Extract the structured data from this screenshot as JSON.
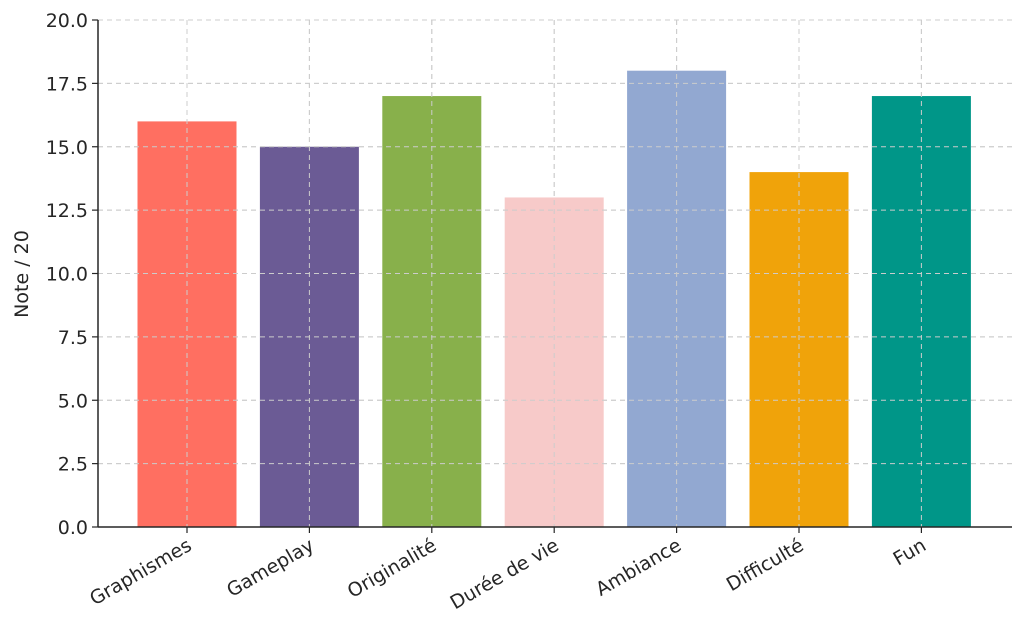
{
  "chart_data": {
    "type": "bar",
    "title": "",
    "xlabel": "",
    "ylabel": "Note / 20",
    "categories": [
      "Graphismes",
      "Gameplay",
      "Originalité",
      "Durée de vie",
      "Ambiance",
      "Difficulté",
      "Fun"
    ],
    "values": [
      16,
      15,
      17,
      13,
      18,
      14,
      17
    ],
    "colors": [
      "#ff6f61",
      "#6b5b95",
      "#88b04b",
      "#f7cac9",
      "#92a8d1",
      "#f0a30a",
      "#009688"
    ],
    "ylim": [
      0,
      20
    ],
    "yticks": [
      0.0,
      2.5,
      5.0,
      7.5,
      10.0,
      12.5,
      15.0,
      17.5,
      20.0
    ],
    "ytick_labels": [
      "0.0",
      "2.5",
      "5.0",
      "7.5",
      "10.0",
      "12.5",
      "15.0",
      "17.5",
      "20.0"
    ],
    "grid": true,
    "legend": false
  }
}
